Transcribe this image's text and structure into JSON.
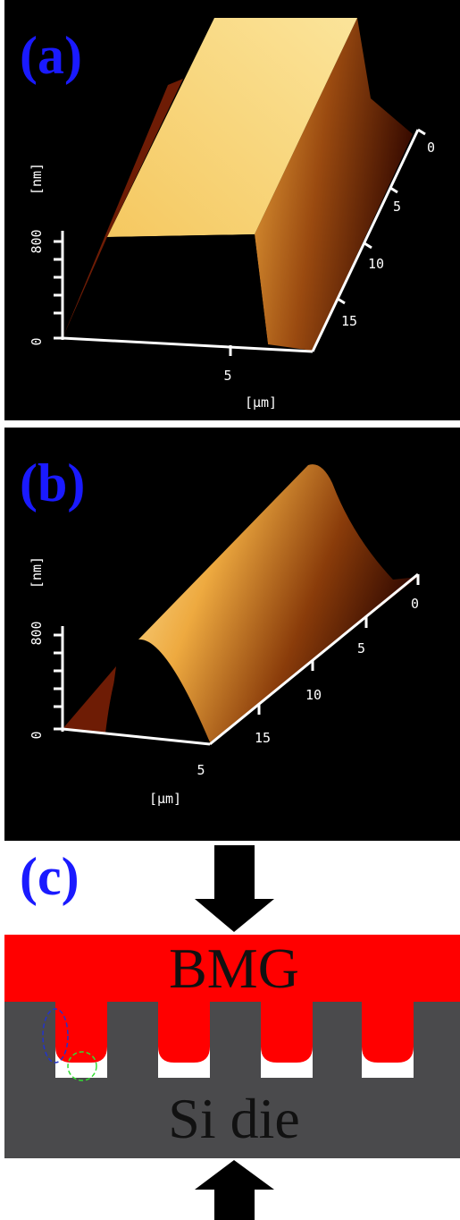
{
  "panels": [
    {
      "label": "(a)",
      "z_unit": "[nm]",
      "z_ticks": [
        "800",
        "0"
      ],
      "x_tick": "5",
      "x_unit": "[µm]",
      "y_ticks": [
        "0",
        "5",
        "10",
        "15"
      ]
    },
    {
      "label": "(b)",
      "z_unit": "[nm]",
      "z_ticks": [
        "800",
        "0"
      ],
      "x_tick": "5",
      "x_unit": "[µm]",
      "y_ticks": [
        "0",
        "5",
        "10",
        "15"
      ]
    }
  ],
  "schematic": {
    "label": "(c)",
    "top": "BMG",
    "bottom": "Si die"
  }
}
